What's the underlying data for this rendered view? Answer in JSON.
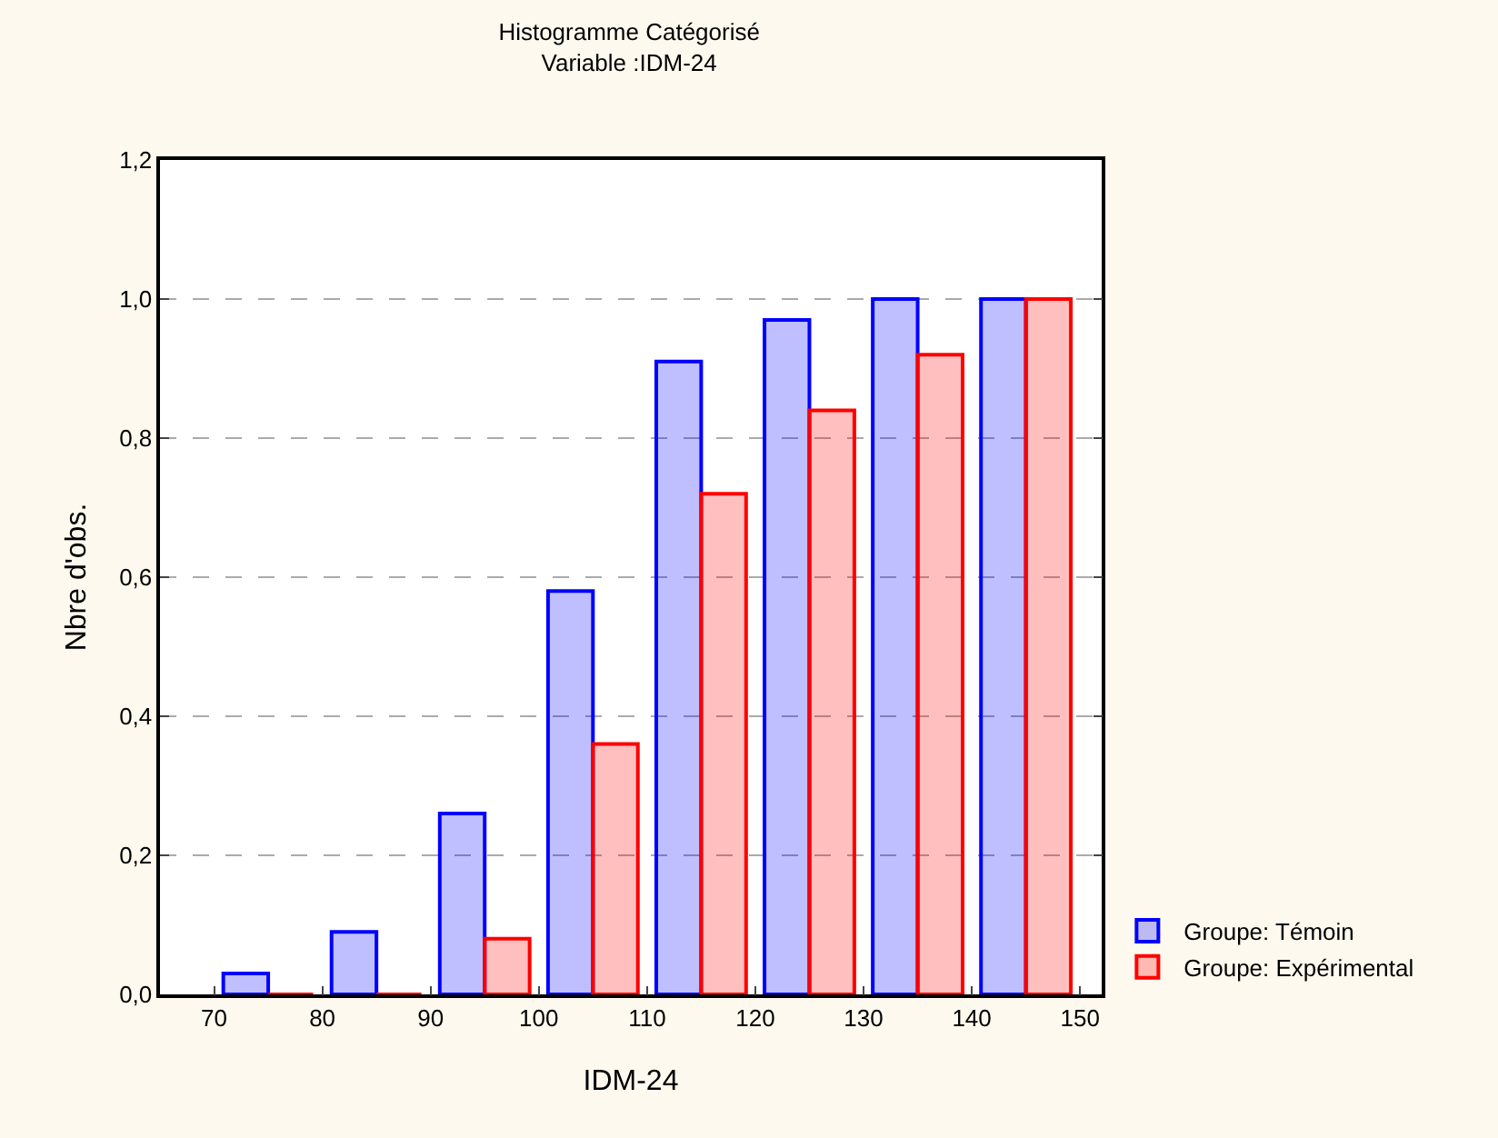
{
  "chart_data": {
    "type": "bar",
    "title": "Histogramme Catégorisé",
    "subtitle": "Variable :IDM-24",
    "xlabel": "IDM-24",
    "ylabel": "Nbre d'obs.",
    "x": [
      75,
      85,
      95,
      105,
      115,
      125,
      135,
      145
    ],
    "series": [
      {
        "name": "Groupe: Témoin",
        "color": "#0000ff",
        "values": [
          0.03,
          0.09,
          0.26,
          0.58,
          0.91,
          0.97,
          1.0,
          1.0
        ]
      },
      {
        "name": "Groupe: Expérimental",
        "color": "#ff0000",
        "values": [
          0,
          0,
          0.08,
          0.36,
          0.72,
          0.84,
          0.92,
          1.0
        ]
      }
    ],
    "xlim": [
      65,
      152
    ],
    "xticks": [
      70,
      80,
      90,
      100,
      110,
      120,
      130,
      140,
      150
    ],
    "ylim": [
      0,
      1.2
    ],
    "yticks": [
      {
        "value": 0,
        "label": "0,0"
      },
      {
        "value": 0.2,
        "label": "0,2"
      },
      {
        "value": 0.4,
        "label": "0,4"
      },
      {
        "value": 0.6,
        "label": "0,6"
      },
      {
        "value": 0.8,
        "label": "0,8"
      },
      {
        "value": 1.0,
        "label": "1,0"
      },
      {
        "value": 1.2,
        "label": "1,2"
      }
    ],
    "grid": "y",
    "legend": "bottom right"
  }
}
